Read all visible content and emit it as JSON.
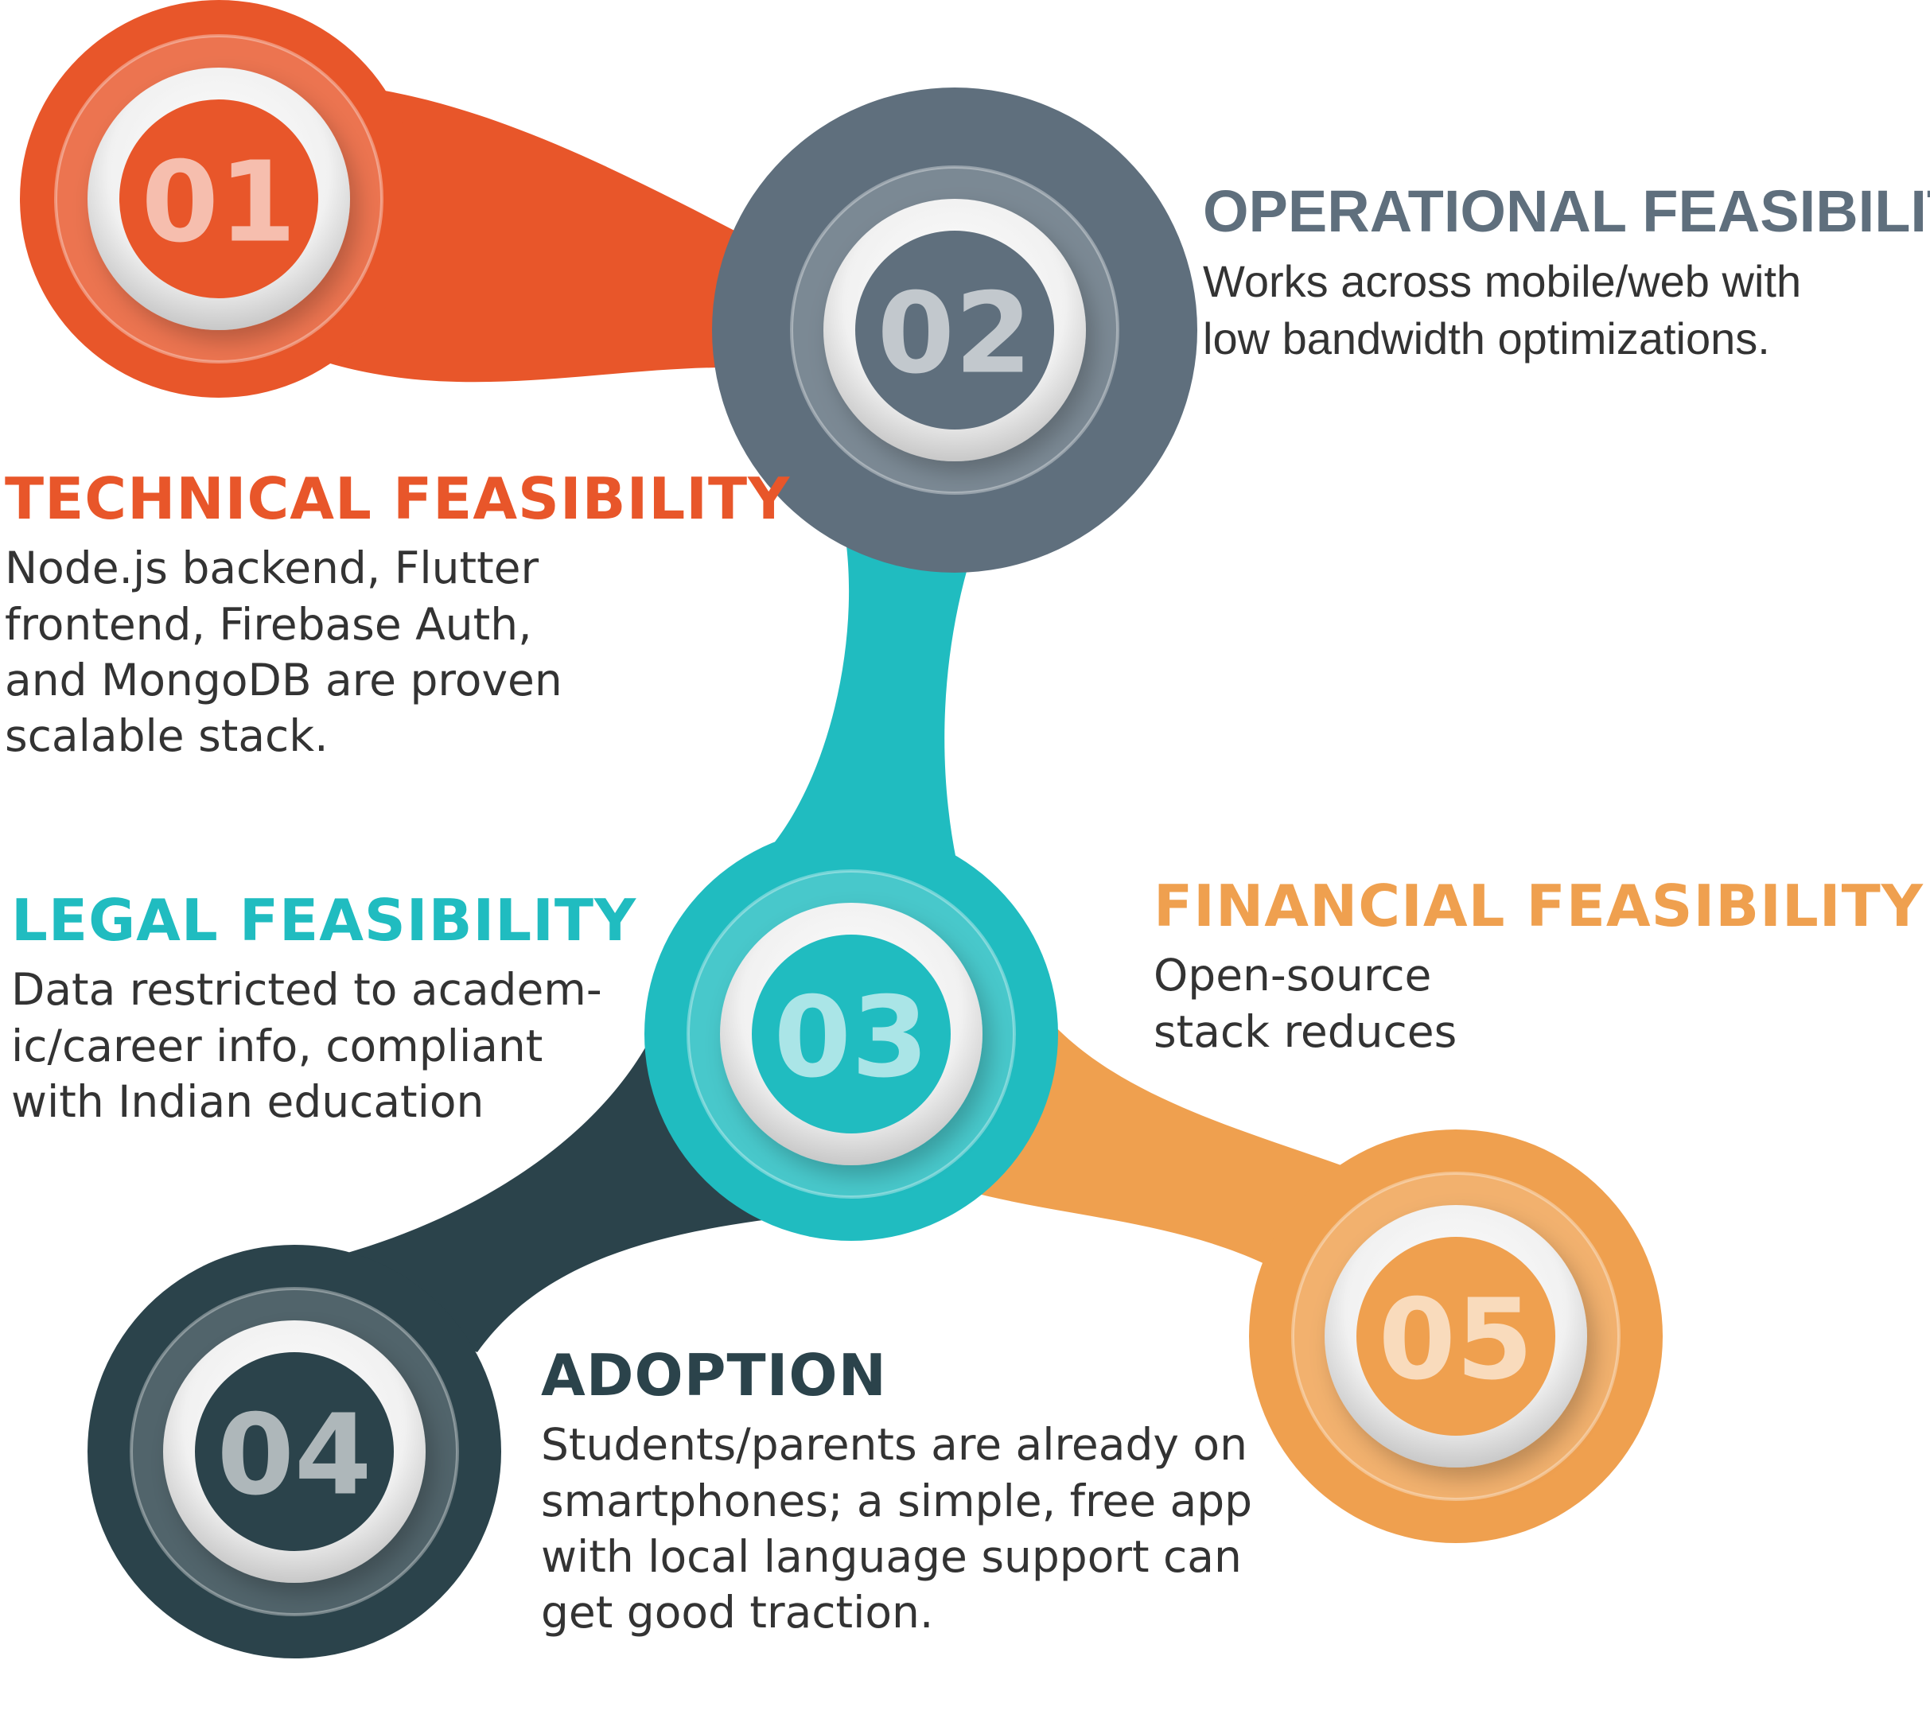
{
  "nodes": [
    {
      "id": "01",
      "number": "01",
      "color": "#E8562A"
    },
    {
      "id": "02",
      "number": "02",
      "color": "#5F6F7D"
    },
    {
      "id": "03",
      "number": "03",
      "color": "#20BCC0"
    },
    {
      "id": "04",
      "number": "04",
      "color": "#2B434B"
    },
    {
      "id": "05",
      "number": "05",
      "color": "#EFA04F"
    }
  ],
  "items": {
    "technical": {
      "title": "TECHNICAL FEASIBILITY",
      "color": "#E8562A",
      "lines": [
        "Node.js backend, Flutter",
        "frontend, Firebase Auth,",
        "and MongoDB are proven",
        "scalable stack."
      ]
    },
    "operational": {
      "title": "OPERATIONAL FEASIBILITY",
      "color": "#5F6F7D",
      "lines": [
        "Works across mobile/web with",
        "low bandwidth optimizations."
      ]
    },
    "legal": {
      "title": "LEGAL FEASIBILITY",
      "color": "#20BCC0",
      "lines": [
        "Data restricted to academ-",
        "ic/career info, compliant",
        "with Indian education"
      ]
    },
    "financial": {
      "title": "FINANCIAL FEASIBILITY",
      "color": "#EFA04F",
      "lines": [
        "Open-source",
        "stack reduces"
      ]
    },
    "adoption": {
      "title": "ADOPTION",
      "color": "#2B434B",
      "lines": [
        "Students/parents are already on",
        "smartphones; a simple, free app",
        "with local language support can",
        "get good traction."
      ]
    }
  }
}
